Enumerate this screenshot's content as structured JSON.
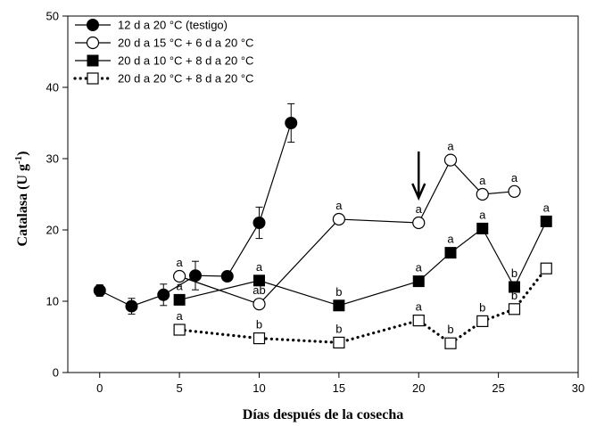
{
  "chart_data": {
    "type": "line",
    "xlabel": "Días después de la cosecha",
    "ylabel_main": "Catalasa (U g",
    "ylabel_sup": "-1",
    "ylabel_end": ")",
    "xlim": [
      -2,
      30
    ],
    "ylim": [
      0,
      50
    ],
    "xticks": [
      0,
      5,
      10,
      15,
      20,
      25,
      30
    ],
    "yticks": [
      0,
      10,
      20,
      30,
      40,
      50
    ],
    "legend_position": "top-left",
    "annotation": {
      "type": "arrow-down",
      "x": 20,
      "y_from": 31,
      "y_to": 24.5
    },
    "series": [
      {
        "name": "12 d a 20 °C (testigo)",
        "marker": "circle-filled",
        "line": "solid",
        "x": [
          0,
          2,
          4,
          6,
          8,
          10,
          12
        ],
        "y": [
          11.5,
          9.3,
          10.9,
          13.6,
          13.5,
          21.0,
          35.0
        ],
        "err": [
          0.8,
          1.1,
          1.5,
          2.0,
          0,
          2.2,
          2.7
        ],
        "labels": [
          "",
          "",
          "",
          "",
          "",
          "",
          ""
        ]
      },
      {
        "name": "20 d a 15 °C + 6 d a 20 °C",
        "marker": "circle-open",
        "line": "solid",
        "x": [
          5,
          10,
          15,
          20,
          22,
          24,
          26
        ],
        "y": [
          13.5,
          9.6,
          21.5,
          21.0,
          29.8,
          25.0,
          25.4
        ],
        "err": [
          0,
          0,
          0,
          0,
          0,
          0,
          0
        ],
        "labels": [
          "a",
          "ab",
          "a",
          "a",
          "a",
          "a",
          "a"
        ]
      },
      {
        "name": "20 d a 10 °C + 8 d a 20 °C",
        "marker": "square-filled",
        "line": "solid",
        "x": [
          5,
          10,
          15,
          20,
          22,
          24,
          26,
          28
        ],
        "y": [
          10.2,
          12.9,
          9.4,
          12.8,
          16.8,
          20.2,
          12.0,
          21.2
        ],
        "err": [
          0,
          0,
          0,
          0,
          0,
          0,
          0,
          0
        ],
        "labels": [
          "a",
          "a",
          "b",
          "a",
          "a",
          "a",
          "b",
          "a"
        ]
      },
      {
        "name": "20 d a 20 °C + 8 d a 20 °C",
        "marker": "square-open",
        "line": "dotted",
        "x": [
          5,
          10,
          15,
          20,
          22,
          24,
          26,
          28
        ],
        "y": [
          6.0,
          4.8,
          4.2,
          7.3,
          4.1,
          7.2,
          8.9,
          14.6
        ],
        "err": [
          0,
          0,
          0,
          0,
          0,
          0,
          0,
          0
        ],
        "labels": [
          "a",
          "b",
          "b",
          "a",
          "b",
          "b",
          "b",
          ""
        ]
      }
    ]
  }
}
